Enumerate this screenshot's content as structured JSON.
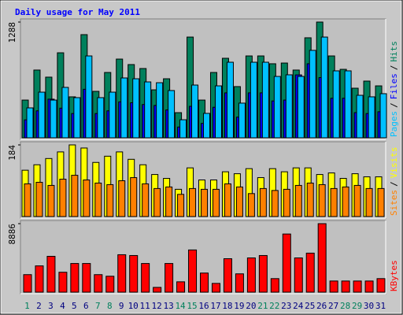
{
  "chart_data": {
    "type": "bar",
    "title": "Daily usage for May 2011",
    "categories": [
      "1",
      "2",
      "3",
      "4",
      "5",
      "6",
      "7",
      "8",
      "9",
      "10",
      "11",
      "12",
      "13",
      "14",
      "15",
      "16",
      "17",
      "18",
      "19",
      "20",
      "21",
      "22",
      "23",
      "24",
      "25",
      "26",
      "27",
      "28",
      "29",
      "30",
      "31"
    ],
    "category_colors": [
      "#00805c",
      "#000080",
      "#000080",
      "#000080",
      "#000080",
      "#000080",
      "#00805c",
      "#00805c",
      "#000080",
      "#000080",
      "#000080",
      "#000080",
      "#000080",
      "#00805c",
      "#00805c",
      "#000080",
      "#000080",
      "#000080",
      "#000080",
      "#000080",
      "#00805c",
      "#00805c",
      "#000080",
      "#000080",
      "#000080",
      "#000080",
      "#000080",
      "#00805c",
      "#00805c",
      "#000080",
      "#000080"
    ],
    "legend_separator": "/",
    "panels": [
      {
        "ylim": [
          0,
          1288
        ],
        "yticks": [
          1288
        ],
        "series": [
          {
            "name": "Hits",
            "color": "#00805c",
            "values": [
              420,
              754,
              675,
              946,
              456,
              1148,
              517,
              727,
              876,
              815,
              771,
              534,
              657,
              280,
              1121,
              420,
              727,
              885,
              570,
              911,
              911,
              824,
              832,
              754,
              1113,
              1288,
              911,
              762,
              552,
              631,
              578
            ]
          },
          {
            "name": "Files",
            "color": "#0000ff",
            "values": [
              200,
              300,
              430,
              330,
              270,
              540,
              270,
              300,
              400,
              390,
              370,
              360,
              310,
              120,
              350,
              160,
              340,
              500,
              230,
              500,
              500,
              410,
              420,
              700,
              824,
              670,
              440,
              440,
              280,
              270,
              290
            ]
          },
          {
            "name": "Pages",
            "color": "#00c0ff",
            "values": [
              333,
              508,
              420,
              561,
              447,
              911,
              447,
              508,
              666,
              657,
              622,
              613,
              526,
              201,
              587,
              272,
              578,
              841,
              386,
              841,
              841,
              683,
              701,
              683,
              973,
              1121,
              745,
              745,
              473,
              456,
              491
            ]
          }
        ]
      },
      {
        "ylim": [
          0,
          184
        ],
        "yticks": [
          184
        ],
        "series": [
          {
            "name": "Visits",
            "color": "#ffff00",
            "values": [
              119,
              133,
              149,
              166,
              184,
              176,
              139,
              155,
              166,
              147,
              133,
              108,
              98,
              70,
              125,
              94,
              94,
              115,
              110,
              123,
              100,
              123,
              115,
              125,
              125,
              108,
              112,
              98,
              110,
              102,
              102
            ]
          },
          {
            "name": "Sites",
            "color": "#ff8000",
            "values": [
              84,
              88,
              80,
              96,
              106,
              94,
              86,
              82,
              92,
              100,
              84,
              72,
              76,
              57,
              72,
              70,
              70,
              84,
              76,
              59,
              72,
              67,
              70,
              80,
              86,
              82,
              72,
              76,
              80,
              72,
              72
            ]
          }
        ]
      },
      {
        "ylim": [
          0,
          8886
        ],
        "yticks": [
          8886
        ],
        "series": [
          {
            "name": "KBytes",
            "color": "#ff0000",
            "values": [
              2273,
              3410,
              4650,
              2583,
              3720,
              3720,
              2273,
              2067,
              4856,
              4753,
              3720,
              620,
              3720,
              1343,
              5476,
              2480,
              1137,
              4340,
              2377,
              4443,
              4753,
              1757,
              7543,
              4443,
              5063,
              8886,
              1447,
              1447,
              1447,
              1447,
              1757
            ]
          }
        ]
      }
    ]
  }
}
